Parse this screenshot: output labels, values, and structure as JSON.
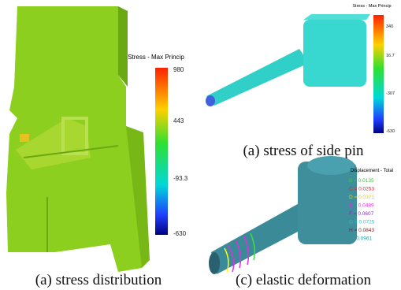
{
  "panels": [
    {
      "colorbar_title": "Stress - Max Princip",
      "ticks": [
        "980",
        "443",
        "-93.3",
        "-630"
      ],
      "caption": "(a) stress distribution"
    },
    {
      "colorbar_title": "Stress - Max Princip",
      "ticks": [
        "340",
        "16.7",
        "-307",
        "-630"
      ],
      "caption": "(a) stress of side pin"
    },
    {
      "legend_title": "Displacement - Total",
      "legend": [
        "B = 0.0135",
        "C = 0.0253",
        "D = 0.0371",
        "E = 0.0489",
        "F = 0.0607",
        "G = 0.0725",
        "H = 0.0843",
        "I = 0.0961"
      ],
      "caption": "(c) elastic deformation"
    }
  ]
}
